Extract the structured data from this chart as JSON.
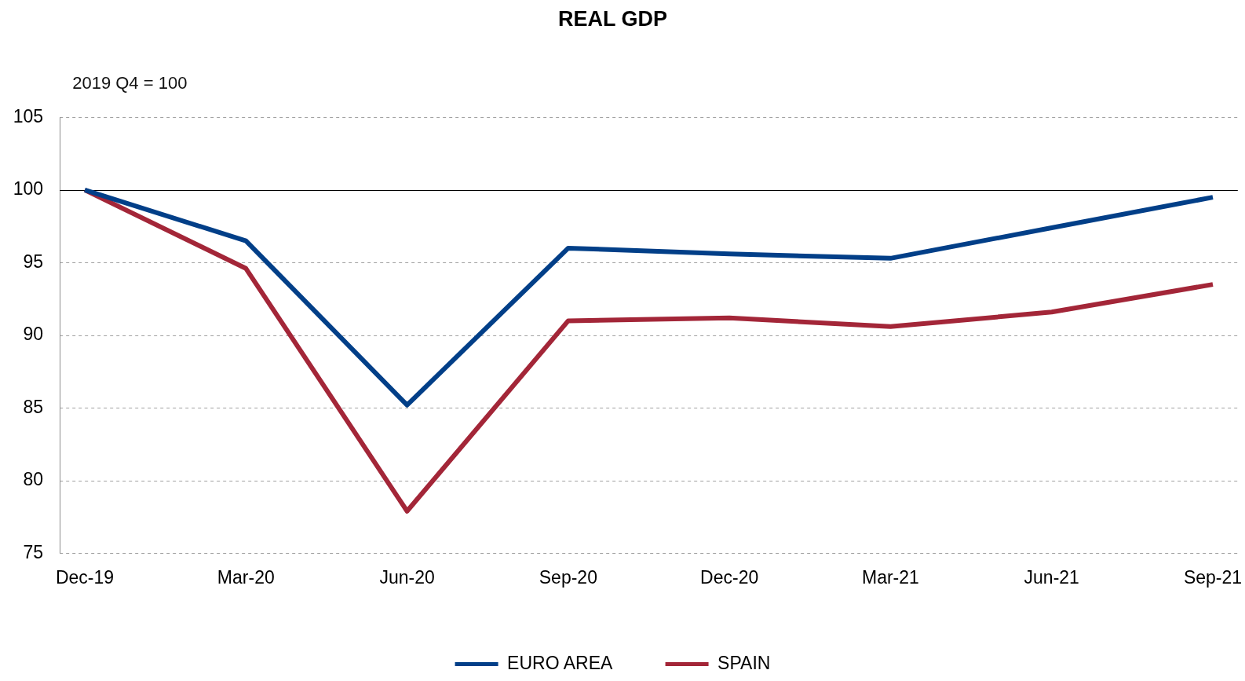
{
  "chart_data": {
    "type": "line",
    "title": "REAL GDP",
    "ylabel": "2019 Q4 = 100",
    "categories": [
      "Dec-19",
      "Mar-20",
      "Jun-20",
      "Sep-20",
      "Dec-20",
      "Mar-21",
      "Jun-21",
      "Sep-21"
    ],
    "series": [
      {
        "name": "EURO AREA",
        "color": "#023f88",
        "values": [
          100,
          96.5,
          85.2,
          96.0,
          95.6,
          95.3,
          97.4,
          99.5
        ]
      },
      {
        "name": "SPAIN",
        "color": "#a32638",
        "values": [
          100,
          94.6,
          77.9,
          91.0,
          91.2,
          90.6,
          91.6,
          93.5
        ]
      }
    ],
    "ylim": [
      75,
      105
    ],
    "yticks": [
      75,
      80,
      85,
      90,
      95,
      100,
      105
    ],
    "grid": "y",
    "legend": "bottom",
    "marker": "none",
    "line_style": "solid",
    "ref_lines": [
      {
        "axis": "y",
        "value": 100,
        "color": "#000000"
      }
    ]
  }
}
